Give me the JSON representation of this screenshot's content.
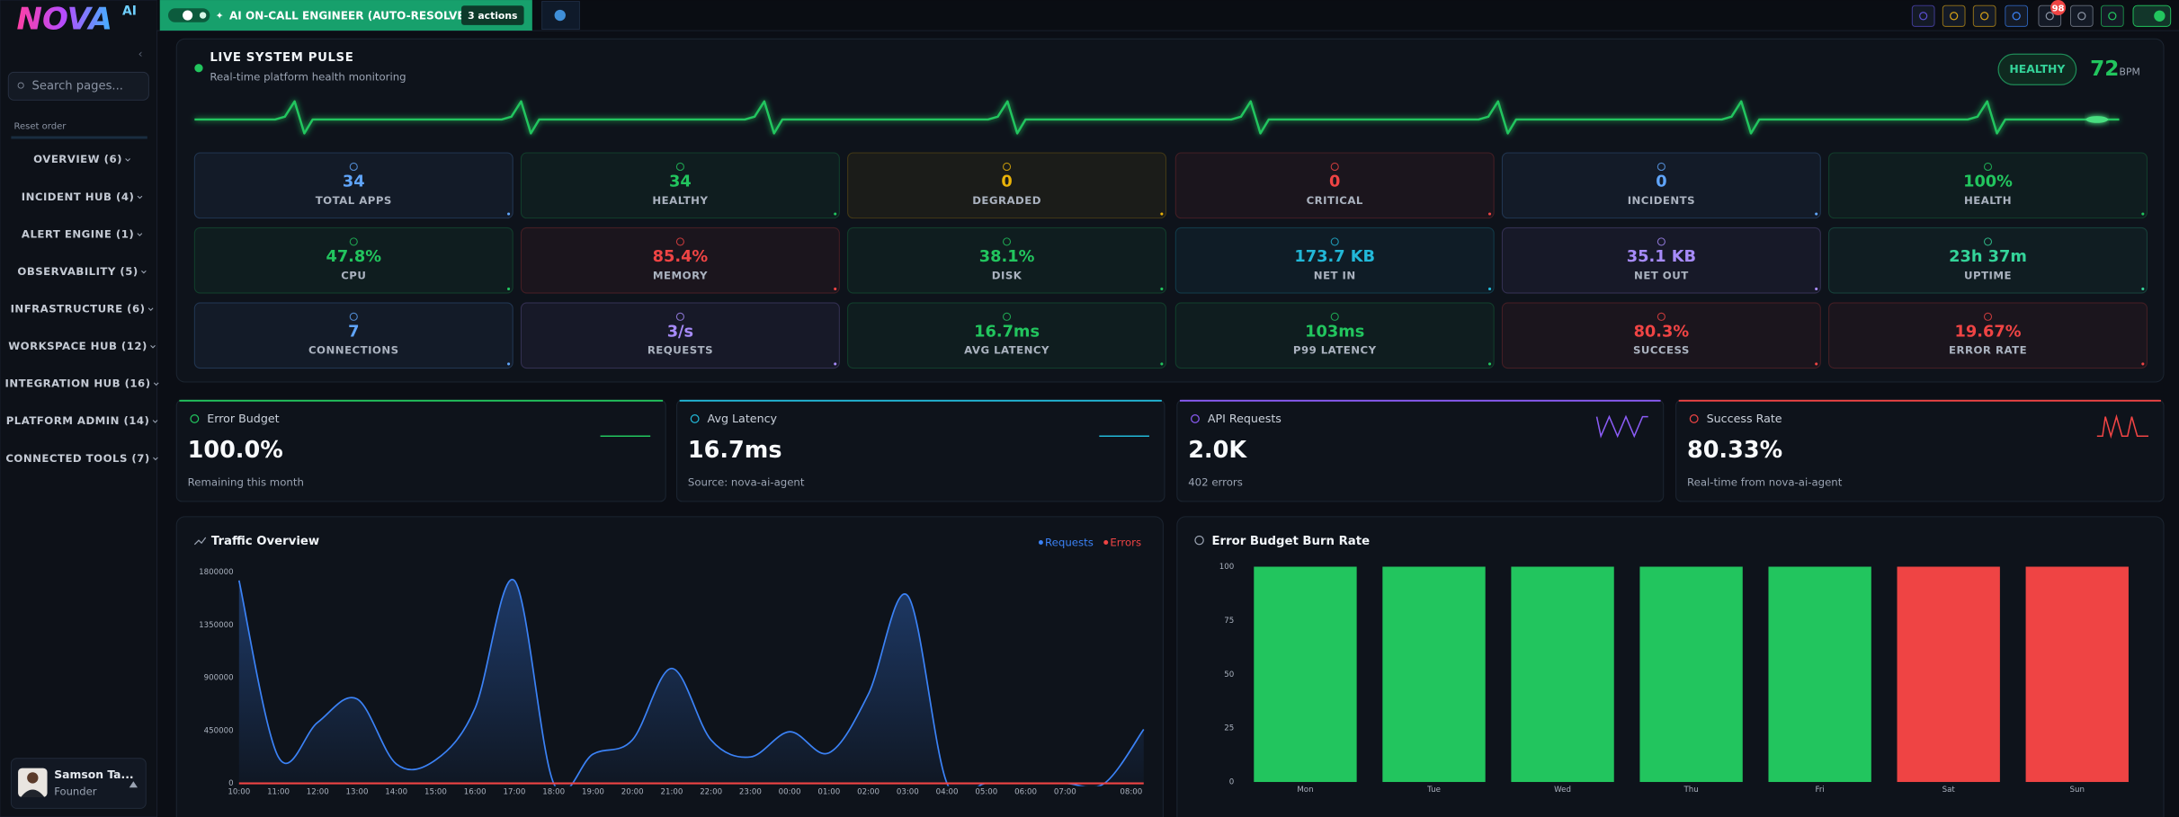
{
  "brand": {
    "name": "NOVA",
    "tag": "AI"
  },
  "topbar": {
    "banner": "AI ON-CALL ENGINEER (AUTO-RESOLVE)",
    "actions": "3 actions",
    "badge": "98"
  },
  "sidebar": {
    "search_placeholder": "Search pages...",
    "reset": "Reset order",
    "nav": [
      "OVERVIEW (6)",
      "INCIDENT HUB (4)",
      "ALERT ENGINE (1)",
      "OBSERVABILITY (5)",
      "INFRASTRUCTURE (6)",
      "WORKSPACE HUB (12)",
      "INTEGRATION HUB (16)",
      "PLATFORM ADMIN (14)",
      "CONNECTED TOOLS (7)"
    ],
    "user": {
      "name": "Samson Ta...",
      "role": "Founder"
    }
  },
  "pulse": {
    "title": "LIVE SYSTEM PULSE",
    "subtitle": "Real-time platform health monitoring",
    "status": "HEALTHY",
    "bpm": "72",
    "bpm_unit": "BPM",
    "tiles": [
      {
        "value": "34",
        "label": "TOTAL APPS",
        "color": "#60a5fa"
      },
      {
        "value": "34",
        "label": "HEALTHY",
        "color": "#22c55e"
      },
      {
        "value": "0",
        "label": "DEGRADED",
        "color": "#eab308"
      },
      {
        "value": "0",
        "label": "CRITICAL",
        "color": "#ef4444"
      },
      {
        "value": "0",
        "label": "INCIDENTS",
        "color": "#60a5fa"
      },
      {
        "value": "100%",
        "label": "HEALTH",
        "color": "#22c55e"
      },
      {
        "value": "47.8%",
        "label": "CPU",
        "color": "#22c55e"
      },
      {
        "value": "85.4%",
        "label": "MEMORY",
        "color": "#ef4444"
      },
      {
        "value": "38.1%",
        "label": "DISK",
        "color": "#22c55e"
      },
      {
        "value": "173.7 KB",
        "label": "NET IN",
        "color": "#22b8d8"
      },
      {
        "value": "35.1 KB",
        "label": "NET OUT",
        "color": "#a78bfa"
      },
      {
        "value": "23h 37m",
        "label": "UPTIME",
        "color": "#34d399"
      },
      {
        "value": "7",
        "label": "CONNECTIONS",
        "color": "#60a5fa"
      },
      {
        "value": "3/s",
        "label": "REQUESTS",
        "color": "#a78bfa"
      },
      {
        "value": "16.7ms",
        "label": "AVG LATENCY",
        "color": "#22c55e"
      },
      {
        "value": "103ms",
        "label": "P99 LATENCY",
        "color": "#22c55e"
      },
      {
        "value": "80.3%",
        "label": "SUCCESS",
        "color": "#ef4444"
      },
      {
        "value": "19.67%",
        "label": "ERROR RATE",
        "color": "#ef4444"
      }
    ]
  },
  "kpis": [
    {
      "title": "Error Budget",
      "value": "100.0%",
      "note": "Remaining this month",
      "color": "#22c55e"
    },
    {
      "title": "Avg Latency",
      "value": "16.7ms",
      "note": "Source: nova-ai-agent",
      "color": "#22b8d8"
    },
    {
      "title": "API Requests",
      "value": "2.0K",
      "note": "402 errors",
      "color": "#8b5cf6"
    },
    {
      "title": "Success Rate",
      "value": "80.33%",
      "note": "Real-time from nova-ai-agent",
      "color": "#ef4444"
    }
  ],
  "chart_data": [
    {
      "type": "line",
      "title": "Traffic Overview",
      "categories": [
        "10:00",
        "11:00",
        "12:00",
        "13:00",
        "14:00",
        "15:00",
        "16:00",
        "17:00",
        "18:00",
        "19:00",
        "20:00",
        "21:00",
        "22:00",
        "23:00",
        "00:00",
        "01:00",
        "02:00",
        "03:00",
        "04:00",
        "05:00",
        "06:00",
        "07:00",
        null,
        "08:00"
      ],
      "series": [
        {
          "name": "Requests",
          "color": "#3b82f6",
          "values": [
            1730000,
            225000,
            520000,
            720000,
            165000,
            200000,
            640000,
            1730000,
            0,
            250000,
            370000,
            980000,
            370000,
            225000,
            440000,
            260000,
            760000,
            1600000,
            0,
            0,
            0,
            0,
            0,
            460000
          ]
        },
        {
          "name": "Errors",
          "color": "#ef4444",
          "values": [
            0,
            0,
            0,
            0,
            0,
            0,
            0,
            0,
            0,
            0,
            0,
            0,
            0,
            0,
            0,
            0,
            0,
            0,
            0,
            0,
            0,
            0,
            0,
            0
          ]
        }
      ],
      "ylim": [
        0,
        1800000
      ],
      "yticks": [
        0,
        450000,
        900000,
        1350000,
        1800000
      ]
    },
    {
      "type": "bar",
      "title": "Error Budget Burn Rate",
      "categories": [
        "Mon",
        "Tue",
        "Wed",
        "Thu",
        "Fri",
        "Sat",
        "Sun"
      ],
      "values": [
        100,
        100,
        100,
        100,
        100,
        100,
        100
      ],
      "colors": [
        "#22c55e",
        "#22c55e",
        "#22c55e",
        "#22c55e",
        "#22c55e",
        "#ef4444",
        "#ef4444"
      ],
      "ylim": [
        0,
        100
      ],
      "yticks": [
        0,
        25,
        50,
        75,
        100
      ]
    }
  ]
}
